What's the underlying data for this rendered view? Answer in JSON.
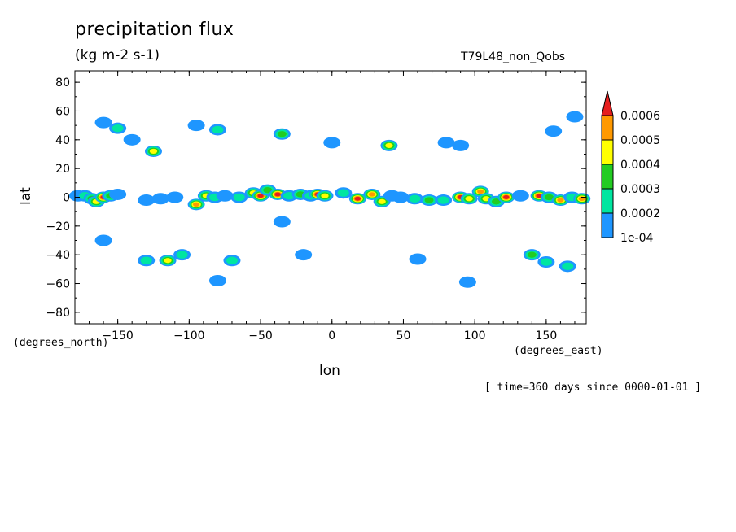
{
  "chart_data": {
    "type": "contour",
    "title": "precipitation flux",
    "subtitle": "(kg m-2 s-1)",
    "run_name": "T79L48_non_Qobs",
    "xlabel": "lon",
    "ylabel": "lat",
    "x_units": "(degrees_east)",
    "y_units": "(degrees_north)",
    "time_note": "[ time=360 days since 0000-01-01 ]",
    "xlim": [
      -180,
      178
    ],
    "ylim": [
      -88,
      88
    ],
    "x_ticks": [
      -150,
      -100,
      -50,
      0,
      50,
      100,
      150
    ],
    "y_ticks": [
      80,
      60,
      40,
      20,
      0,
      -20,
      -40,
      -60,
      -80
    ],
    "colorbar": {
      "levels": [
        "1e-04",
        "0.0002",
        "0.0003",
        "0.0004",
        "0.0005",
        "0.0006"
      ],
      "colors": [
        "#1e96ff",
        "#00e6a0",
        "#22cc22",
        "#ffff00",
        "#ff9900",
        "#e61e1e"
      ]
    },
    "cells": [
      [
        -178,
        1,
        0.00012
      ],
      [
        -173,
        1,
        0.00022
      ],
      [
        -168,
        -1,
        0.00032
      ],
      [
        -165,
        -3,
        0.00045
      ],
      [
        -160,
        0,
        0.00062
      ],
      [
        -155,
        1,
        0.00035
      ],
      [
        -150,
        2,
        0.00014
      ],
      [
        -130,
        -2,
        0.00015
      ],
      [
        -120,
        -1,
        0.00018
      ],
      [
        -110,
        0,
        0.00013
      ],
      [
        -95,
        -5,
        0.00052
      ],
      [
        -88,
        1,
        0.00042
      ],
      [
        -82,
        0,
        0.00022
      ],
      [
        -75,
        1,
        0.00016
      ],
      [
        -65,
        0,
        0.00025
      ],
      [
        -55,
        3,
        0.00044
      ],
      [
        -50,
        1,
        0.00066
      ],
      [
        -45,
        5,
        0.0003
      ],
      [
        -38,
        2,
        0.00062
      ],
      [
        -30,
        1,
        0.00028
      ],
      [
        -22,
        2,
        0.00032
      ],
      [
        -15,
        1,
        0.00022
      ],
      [
        -10,
        2,
        0.0007
      ],
      [
        -5,
        1,
        0.00048
      ],
      [
        8,
        3,
        0.00022
      ],
      [
        18,
        -1,
        0.00062
      ],
      [
        28,
        2,
        0.00055
      ],
      [
        35,
        -3,
        0.00042
      ],
      [
        42,
        1,
        0.00018
      ],
      [
        48,
        0,
        0.00014
      ],
      [
        58,
        -1,
        0.00028
      ],
      [
        68,
        -2,
        0.00038
      ],
      [
        78,
        -2,
        0.00022
      ],
      [
        90,
        0,
        0.00062
      ],
      [
        96,
        -1,
        0.0004
      ],
      [
        104,
        4,
        0.00058
      ],
      [
        108,
        -1,
        0.00048
      ],
      [
        115,
        -3,
        0.00032
      ],
      [
        122,
        0,
        0.0006
      ],
      [
        132,
        1,
        0.00018
      ],
      [
        145,
        1,
        0.00068
      ],
      [
        152,
        0,
        0.00036
      ],
      [
        160,
        -2,
        0.00055
      ],
      [
        168,
        0,
        0.00024
      ],
      [
        175,
        -1,
        0.00052
      ],
      [
        -160,
        52,
        0.00014
      ],
      [
        -150,
        48,
        0.00024
      ],
      [
        -140,
        40,
        0.00018
      ],
      [
        -125,
        32,
        0.00042
      ],
      [
        -95,
        50,
        0.00014
      ],
      [
        -80,
        47,
        0.00022
      ],
      [
        -35,
        44,
        0.00038
      ],
      [
        0,
        38,
        0.00014
      ],
      [
        40,
        36,
        0.00042
      ],
      [
        80,
        38,
        0.00016
      ],
      [
        90,
        36,
        0.00013
      ],
      [
        155,
        46,
        0.00018
      ],
      [
        170,
        56,
        0.00014
      ],
      [
        -130,
        -44,
        0.00022
      ],
      [
        -115,
        -44,
        0.00042
      ],
      [
        -105,
        -40,
        0.00024
      ],
      [
        -70,
        -44,
        0.00028
      ],
      [
        -80,
        -58,
        0.00012
      ],
      [
        -20,
        -40,
        0.00014
      ],
      [
        60,
        -43,
        0.00015
      ],
      [
        95,
        -59,
        0.00012
      ],
      [
        140,
        -40,
        0.00034
      ],
      [
        150,
        -45,
        0.00026
      ],
      [
        165,
        -48,
        0.00024
      ],
      [
        -160,
        -30,
        0.00013
      ],
      [
        -35,
        -17,
        0.00014
      ]
    ]
  }
}
